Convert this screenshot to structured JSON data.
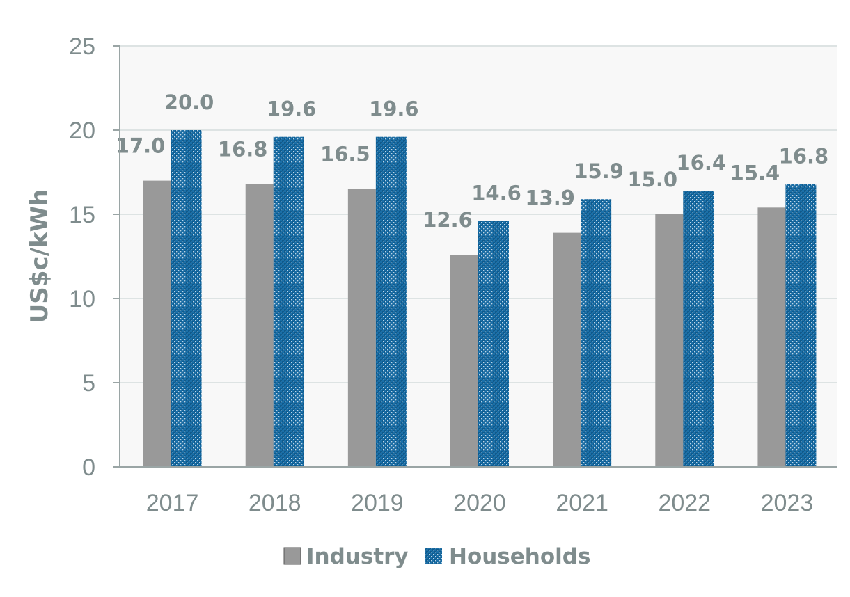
{
  "chart_data": {
    "type": "bar",
    "categories": [
      "2017",
      "2018",
      "2019",
      "2020",
      "2021",
      "2022",
      "2023"
    ],
    "series": [
      {
        "name": "Industry",
        "values": [
          17.0,
          16.8,
          16.5,
          12.6,
          13.9,
          15.0,
          15.4
        ],
        "color": "#999999"
      },
      {
        "name": "Households",
        "values": [
          20.0,
          19.6,
          19.6,
          14.6,
          15.9,
          16.4,
          16.8
        ],
        "color": "#1a6fa8"
      }
    ],
    "title": "",
    "xlabel": "",
    "ylabel": "US$c/kWh",
    "ylim": [
      0,
      25
    ],
    "yticks": [
      0,
      5,
      10,
      15,
      20,
      25
    ],
    "grid": true,
    "legend": "bottom-center",
    "data_labels": true,
    "colors": {
      "plot_background": "#f8f8f8",
      "gridline": "#dde3e3",
      "axis": "#9aa5a5",
      "text": "#7f8c8d"
    }
  }
}
